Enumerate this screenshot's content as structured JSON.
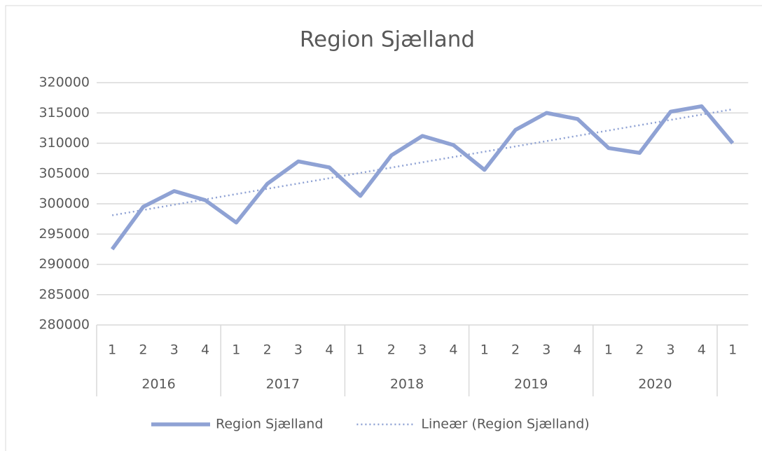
{
  "chart_data": {
    "type": "line",
    "title": "Region Sjælland",
    "categories": [
      "1",
      "2",
      "3",
      "4",
      "1",
      "2",
      "3",
      "4",
      "1",
      "2",
      "3",
      "4",
      "1",
      "2",
      "3",
      "4",
      "1",
      "2",
      "3",
      "4",
      "1"
    ],
    "groups": [
      {
        "label": "2016",
        "span": 4
      },
      {
        "label": "2017",
        "span": 4
      },
      {
        "label": "2018",
        "span": 4
      },
      {
        "label": "2019",
        "span": 4
      },
      {
        "label": "2020",
        "span": 4
      }
    ],
    "series": [
      {
        "name": "Region Sjælland",
        "color": "#8fa2d4",
        "style": "solid",
        "values": [
          292500,
          299500,
          302100,
          300600,
          296900,
          303300,
          307000,
          306000,
          301300,
          308000,
          311200,
          309700,
          305600,
          312200,
          315000,
          314000,
          309200,
          308400,
          315200,
          316100,
          310000
        ]
      },
      {
        "name": "Lineær (Region Sjælland)",
        "color": "#8fa2d4",
        "style": "dotted",
        "values": [
          298100,
          298975,
          299850,
          300725,
          301600,
          302475,
          303350,
          304225,
          305100,
          305975,
          306850,
          307725,
          308600,
          309475,
          310350,
          311225,
          312100,
          312975,
          313850,
          314725,
          315600
        ]
      }
    ],
    "ylim": [
      280000,
      320000
    ],
    "yticks": [
      280000,
      285000,
      290000,
      295000,
      300000,
      305000,
      310000,
      315000,
      320000
    ],
    "grid": true,
    "legend": "bottom"
  }
}
